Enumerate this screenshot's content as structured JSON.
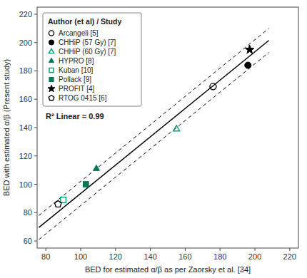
{
  "chart_data": {
    "type": "scatter",
    "xlabel": "BED for estimated α/β as per Zaorsky et al. [34]",
    "ylabel": "BED with estimated α/β (Present study)",
    "xlim": [
      75,
      225
    ],
    "ylim": [
      55,
      225
    ],
    "xticks": [
      80,
      100,
      120,
      140,
      160,
      180,
      200,
      220
    ],
    "yticks": [
      60,
      80,
      100,
      120,
      140,
      160,
      180,
      200,
      220
    ],
    "grid": false,
    "legend": "upper left",
    "legend_title": "Author (et al) / Study",
    "annotations": [
      "R² Linear = 0.99"
    ],
    "series": [
      {
        "name": "Arcangeli [5]",
        "type": "scatter",
        "x": [
          176
        ],
        "values": [
          169
        ],
        "marker": "circle-open",
        "color": "#000000"
      },
      {
        "name": "CHHiP (57 Gy) [7]",
        "type": "scatter",
        "x": [
          196
        ],
        "values": [
          184
        ],
        "marker": "circle",
        "color": "#000000"
      },
      {
        "name": "CHHiP (60 Gy) [7]",
        "type": "scatter",
        "x": [
          155
        ],
        "values": [
          139
        ],
        "marker": "triangle-open",
        "color": "#009977"
      },
      {
        "name": "HYPRO [8]",
        "type": "scatter",
        "x": [
          109
        ],
        "values": [
          111
        ],
        "marker": "triangle",
        "color": "#007755"
      },
      {
        "name": "Kuban [10]",
        "type": "scatter",
        "x": [
          90
        ],
        "values": [
          89
        ],
        "marker": "square-open",
        "color": "#009977"
      },
      {
        "name": "Pollack [9]",
        "type": "scatter",
        "x": [
          103
        ],
        "values": [
          100
        ],
        "marker": "square",
        "color": "#007755"
      },
      {
        "name": "PROFIT [4]",
        "type": "scatter",
        "x": [
          197
        ],
        "values": [
          195
        ],
        "marker": "star",
        "color": "#000000"
      },
      {
        "name": "RTOG 0415 [6]",
        "type": "scatter",
        "x": [
          87
        ],
        "values": [
          86
        ],
        "marker": "pentagon-open",
        "color": "#000000"
      },
      {
        "type": "line",
        "x": [
          76,
          208
        ],
        "values": [
          69.5,
          201.5
        ],
        "line_style": "solid",
        "color": "#000000"
      },
      {
        "type": "line",
        "x": [
          76,
          208
        ],
        "values": [
          78,
          210
        ],
        "line_style": "dashed",
        "color": "#000000"
      },
      {
        "type": "line",
        "x": [
          76,
          208
        ],
        "values": [
          61,
          193
        ],
        "line_style": "dashed",
        "color": "#000000"
      }
    ]
  }
}
